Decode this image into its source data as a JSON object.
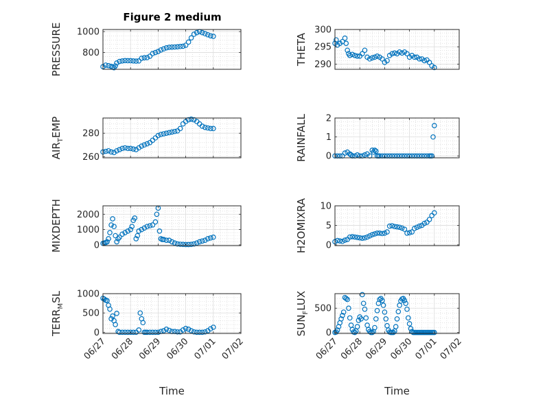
{
  "figure": {
    "title": "Figure 2 medium"
  },
  "chart_data": [
    {
      "type": "scatter",
      "id": "pressure",
      "title": "Figure 2 medium",
      "ylabel": "PRESSURE",
      "xlabel": "",
      "xlim": [
        "06/27",
        "07/02"
      ],
      "ylim": [
        640,
        1020
      ],
      "yticks": [
        800,
        1000
      ],
      "xticks": [
        "06/27",
        "06/28",
        "06/29",
        "06/30",
        "07/01",
        "07/02"
      ],
      "show_xticklabels": false,
      "grid": true,
      "marker_color": "#0072BD",
      "series": [
        {
          "x": [
            0,
            0.1,
            0.2,
            0.3,
            0.35,
            0.4,
            0.45,
            0.5,
            0.6,
            0.7,
            0.8,
            0.9,
            1.0,
            1.1,
            1.2,
            1.3,
            1.4,
            1.5,
            1.6,
            1.7,
            1.8,
            1.9,
            2.0,
            2.1,
            2.2,
            2.3,
            2.4,
            2.5,
            2.6,
            2.7,
            2.8,
            2.9,
            3.0,
            3.1,
            3.2,
            3.3,
            3.4,
            3.5,
            3.6,
            3.7,
            3.8,
            3.9,
            4.0
          ],
          "y": [
            665,
            680,
            675,
            668,
            660,
            655,
            672,
            700,
            715,
            720,
            723,
            722,
            722,
            720,
            718,
            720,
            745,
            750,
            752,
            765,
            790,
            800,
            810,
            825,
            835,
            845,
            850,
            852,
            853,
            855,
            858,
            860,
            870,
            900,
            940,
            975,
            990,
            1000,
            990,
            980,
            970,
            960,
            955
          ]
        }
      ]
    },
    {
      "type": "scatter",
      "id": "theta",
      "title": "",
      "ylabel": "THETA",
      "xlabel": "",
      "xlim": [
        "06/27",
        "07/02"
      ],
      "ylim": [
        288.5,
        300
      ],
      "yticks": [
        290,
        295,
        300
      ],
      "xticks": [
        "06/27",
        "06/28",
        "06/29",
        "06/30",
        "07/01",
        "07/02"
      ],
      "show_xticklabels": false,
      "grid": true,
      "marker_color": "#0072BD",
      "series": [
        {
          "x": [
            0,
            0.05,
            0.1,
            0.2,
            0.3,
            0.4,
            0.45,
            0.5,
            0.55,
            0.6,
            0.7,
            0.8,
            0.9,
            1.0,
            1.1,
            1.2,
            1.3,
            1.4,
            1.5,
            1.6,
            1.7,
            1.8,
            1.9,
            2.0,
            2.1,
            2.2,
            2.3,
            2.4,
            2.5,
            2.6,
            2.7,
            2.8,
            2.9,
            3.0,
            3.1,
            3.2,
            3.3,
            3.4,
            3.5,
            3.6,
            3.7,
            3.8,
            3.9,
            4.0
          ],
          "y": [
            296,
            297,
            295.5,
            296,
            296.5,
            297.5,
            296,
            294,
            293,
            292.5,
            292.8,
            292.5,
            292.3,
            292.3,
            293,
            294,
            292,
            291.5,
            291.8,
            292,
            292.3,
            292,
            291.5,
            290.5,
            291,
            292.5,
            293,
            293.2,
            293,
            293.5,
            293.2,
            293.5,
            293,
            292,
            292.5,
            292,
            292,
            291.5,
            291.5,
            291,
            291.2,
            290.5,
            289.5,
            289
          ]
        }
      ]
    },
    {
      "type": "scatter",
      "id": "air_temp",
      "title": "",
      "ylabel": "AIR_TEMP",
      "ylabel_main": "AIR",
      "ylabel_sub": "T",
      "ylabel_tail": "EMP",
      "xlabel": "",
      "xlim": [
        "06/27",
        "07/02"
      ],
      "ylim": [
        259,
        293
      ],
      "yticks": [
        260,
        280
      ],
      "xticks": [
        "06/27",
        "06/28",
        "06/29",
        "06/30",
        "07/01",
        "07/02"
      ],
      "show_xticklabels": false,
      "grid": true,
      "marker_color": "#0072BD",
      "series": [
        {
          "x": [
            0,
            0.1,
            0.2,
            0.3,
            0.4,
            0.5,
            0.6,
            0.7,
            0.8,
            0.9,
            1.0,
            1.1,
            1.2,
            1.3,
            1.4,
            1.5,
            1.6,
            1.7,
            1.8,
            1.9,
            2.0,
            2.1,
            2.2,
            2.3,
            2.4,
            2.5,
            2.6,
            2.7,
            2.8,
            2.9,
            3.0,
            3.1,
            3.2,
            3.3,
            3.4,
            3.5,
            3.6,
            3.7,
            3.8,
            3.9,
            4.0
          ],
          "y": [
            264,
            264.5,
            265,
            264,
            263.5,
            265,
            266,
            267,
            267.5,
            267,
            267,
            266.5,
            266,
            267.5,
            269,
            270,
            271,
            272,
            274,
            276,
            278,
            279,
            279.5,
            280,
            280.5,
            281,
            281.5,
            282,
            284,
            288,
            290,
            291.5,
            292,
            291.5,
            290,
            288,
            286,
            285,
            284.5,
            284,
            284
          ]
        }
      ]
    },
    {
      "type": "scatter",
      "id": "rainfall",
      "title": "",
      "ylabel": "RAINFALL",
      "xlabel": "",
      "xlim": [
        "06/27",
        "07/02"
      ],
      "ylim": [
        -0.1,
        2
      ],
      "yticks": [
        0,
        1,
        2
      ],
      "xticks": [
        "06/27",
        "06/28",
        "06/29",
        "06/30",
        "07/01",
        "07/02"
      ],
      "show_xticklabels": false,
      "grid": true,
      "marker_color": "#0072BD",
      "series": [
        {
          "x": [
            0,
            0.1,
            0.2,
            0.3,
            0.4,
            0.5,
            0.6,
            0.65,
            0.7,
            0.8,
            0.9,
            1.0,
            1.1,
            1.2,
            1.3,
            1.4,
            1.5,
            1.55,
            1.6,
            1.65,
            1.7,
            1.75,
            1.8,
            1.9,
            2.0,
            2.1,
            2.2,
            2.3,
            2.4,
            2.5,
            2.6,
            2.7,
            2.8,
            2.9,
            3.0,
            3.1,
            3.2,
            3.3,
            3.4,
            3.5,
            3.6,
            3.7,
            3.8,
            3.85,
            3.9,
            3.95,
            4.0
          ],
          "y": [
            0,
            0,
            0,
            0,
            0.15,
            0.2,
            0.1,
            0.05,
            0,
            0,
            0.05,
            0,
            0,
            0.05,
            0.1,
            0,
            0.3,
            0.2,
            0.3,
            0.25,
            0,
            0,
            0,
            0,
            0,
            0,
            0,
            0,
            0,
            0,
            0,
            0,
            0,
            0,
            0,
            0,
            0,
            0,
            0,
            0,
            0,
            0,
            0,
            0,
            0,
            1.0,
            1.6
          ]
        }
      ]
    },
    {
      "type": "scatter",
      "id": "mixdepth",
      "title": "",
      "ylabel": "MIXDEPTH",
      "xlabel": "",
      "xlim": [
        "06/27",
        "07/02"
      ],
      "ylim": [
        -50,
        2550
      ],
      "yticks": [
        0,
        1000,
        2000
      ],
      "xticks": [
        "06/27",
        "06/28",
        "06/29",
        "06/30",
        "07/01",
        "07/02"
      ],
      "show_xticklabels": false,
      "grid": true,
      "marker_color": "#0072BD",
      "series": [
        {
          "x": [
            0,
            0.05,
            0.1,
            0.15,
            0.2,
            0.25,
            0.3,
            0.35,
            0.4,
            0.45,
            0.5,
            0.55,
            0.6,
            0.7,
            0.8,
            0.9,
            1.0,
            1.05,
            1.1,
            1.15,
            1.2,
            1.25,
            1.3,
            1.4,
            1.5,
            1.6,
            1.7,
            1.8,
            1.9,
            1.95,
            2.0,
            2.05,
            2.1,
            2.15,
            2.2,
            2.3,
            2.4,
            2.5,
            2.6,
            2.7,
            2.8,
            2.9,
            3.0,
            3.1,
            3.2,
            3.3,
            3.4,
            3.5,
            3.6,
            3.7,
            3.8,
            3.9,
            4.0
          ],
          "y": [
            100,
            120,
            150,
            200,
            400,
            800,
            1300,
            1700,
            1200,
            600,
            200,
            400,
            500,
            700,
            800,
            900,
            1000,
            1200,
            1600,
            1750,
            400,
            600,
            900,
            1000,
            1100,
            1200,
            1250,
            1300,
            1500,
            2000,
            2400,
            900,
            400,
            350,
            350,
            300,
            300,
            200,
            120,
            60,
            40,
            30,
            20,
            20,
            30,
            60,
            120,
            200,
            250,
            300,
            400,
            450,
            500
          ]
        }
      ]
    },
    {
      "type": "scatter",
      "id": "h2omixra",
      "title": "",
      "ylabel": "H2OMIXRA",
      "xlabel": "",
      "xlim": [
        "06/27",
        "07/02"
      ],
      "ylim": [
        -0.2,
        10
      ],
      "yticks": [
        0,
        5,
        10
      ],
      "xticks": [
        "06/27",
        "06/28",
        "06/29",
        "06/30",
        "07/01",
        "07/02"
      ],
      "show_xticklabels": false,
      "grid": true,
      "marker_color": "#0072BD",
      "series": [
        {
          "x": [
            0,
            0.1,
            0.2,
            0.3,
            0.4,
            0.5,
            0.6,
            0.7,
            0.8,
            0.9,
            1.0,
            1.1,
            1.2,
            1.3,
            1.4,
            1.5,
            1.6,
            1.7,
            1.8,
            1.9,
            2.0,
            2.1,
            2.2,
            2.3,
            2.4,
            2.5,
            2.6,
            2.7,
            2.8,
            2.9,
            3.0,
            3.1,
            3.2,
            3.3,
            3.4,
            3.5,
            3.6,
            3.7,
            3.8,
            3.9,
            4.0
          ],
          "y": [
            0.8,
            1.1,
            1.0,
            0.9,
            1.2,
            1.4,
            2.0,
            2.1,
            2.0,
            1.9,
            1.8,
            1.7,
            1.8,
            2.0,
            2.3,
            2.6,
            2.8,
            3.0,
            3.0,
            2.9,
            3.0,
            3.3,
            4.8,
            4.9,
            4.7,
            4.6,
            4.5,
            4.3,
            4.0,
            3.0,
            3.1,
            3.3,
            4.2,
            4.5,
            4.8,
            5.0,
            5.5,
            5.8,
            6.5,
            7.5,
            8.2
          ]
        }
      ]
    },
    {
      "type": "scatter",
      "id": "terr_msl",
      "title": "",
      "ylabel": "TERR_MSL",
      "ylabel_main": "TERR",
      "ylabel_sub": "M",
      "ylabel_tail": "SL",
      "xlabel": "Time",
      "xlim": [
        "06/27",
        "07/02"
      ],
      "ylim": [
        -30,
        1000
      ],
      "yticks": [
        0,
        500,
        1000
      ],
      "xticks": [
        "06/27",
        "06/28",
        "06/29",
        "06/30",
        "07/01",
        "07/02"
      ],
      "show_xticklabels": true,
      "grid": true,
      "marker_color": "#0072BD",
      "series": [
        {
          "x": [
            0,
            0.05,
            0.1,
            0.15,
            0.2,
            0.25,
            0.3,
            0.35,
            0.4,
            0.45,
            0.5,
            0.55,
            0.6,
            0.7,
            0.8,
            0.9,
            1.0,
            1.1,
            1.2,
            1.3,
            1.35,
            1.4,
            1.45,
            1.5,
            1.55,
            1.6,
            1.7,
            1.8,
            1.9,
            2.0,
            2.1,
            2.2,
            2.3,
            2.4,
            2.5,
            2.6,
            2.7,
            2.8,
            2.9,
            3.0,
            3.1,
            3.2,
            3.3,
            3.4,
            3.5,
            3.6,
            3.7,
            3.8,
            3.9,
            4.0
          ],
          "y": [
            880,
            860,
            830,
            820,
            700,
            600,
            350,
            420,
            300,
            200,
            490,
            20,
            0,
            0,
            0,
            0,
            0,
            0,
            0,
            60,
            500,
            350,
            250,
            0,
            0,
            0,
            0,
            0,
            0,
            0,
            20,
            40,
            80,
            50,
            20,
            20,
            10,
            10,
            60,
            100,
            80,
            40,
            10,
            0,
            0,
            0,
            10,
            40,
            90,
            130
          ]
        }
      ]
    },
    {
      "type": "scatter",
      "id": "sun_flux",
      "title": "",
      "ylabel": "SUN_FLUX",
      "ylabel_main": "SUN",
      "ylabel_sub": "F",
      "ylabel_tail": "LUX",
      "xlabel": "Time",
      "xlim": [
        "06/27",
        "07/02"
      ],
      "ylim": [
        -20,
        800
      ],
      "yticks": [
        0,
        500
      ],
      "xticks": [
        "06/27",
        "06/28",
        "06/29",
        "06/30",
        "07/01",
        "07/02"
      ],
      "show_xticklabels": true,
      "grid": true,
      "marker_color": "#0072BD",
      "series": [
        {
          "x": [
            0,
            0.05,
            0.1,
            0.15,
            0.2,
            0.25,
            0.3,
            0.35,
            0.4,
            0.45,
            0.5,
            0.55,
            0.6,
            0.65,
            0.7,
            0.75,
            0.8,
            0.85,
            0.9,
            0.95,
            1.0,
            1.05,
            1.1,
            1.15,
            1.2,
            1.25,
            1.3,
            1.35,
            1.4,
            1.45,
            1.5,
            1.55,
            1.6,
            1.65,
            1.7,
            1.75,
            1.8,
            1.85,
            1.9,
            1.95,
            2.0,
            2.05,
            2.1,
            2.15,
            2.2,
            2.25,
            2.3,
            2.35,
            2.4,
            2.45,
            2.5,
            2.55,
            2.6,
            2.65,
            2.7,
            2.75,
            2.8,
            2.85,
            2.9,
            2.95,
            3.0,
            3.05,
            3.1,
            3.15,
            3.2,
            3.25,
            3.3,
            3.35,
            3.4,
            3.45,
            3.5,
            3.55,
            3.6,
            3.65,
            3.7,
            3.75,
            3.8,
            3.85,
            3.9,
            3.95,
            4.0
          ],
          "y": [
            0,
            10,
            50,
            120,
            200,
            280,
            350,
            420,
            720,
            700,
            680,
            500,
            300,
            150,
            60,
            10,
            0,
            30,
            120,
            250,
            320,
            280,
            780,
            600,
            480,
            300,
            150,
            60,
            20,
            0,
            0,
            20,
            100,
            280,
            450,
            600,
            680,
            700,
            660,
            560,
            420,
            280,
            140,
            50,
            10,
            0,
            0,
            0,
            30,
            120,
            280,
            430,
            560,
            650,
            690,
            700,
            660,
            600,
            480,
            300,
            180,
            80,
            20,
            0,
            0,
            0,
            0,
            0,
            0,
            0,
            0,
            0,
            0,
            0,
            0,
            0,
            0,
            0,
            0,
            0,
            0
          ]
        }
      ]
    }
  ]
}
